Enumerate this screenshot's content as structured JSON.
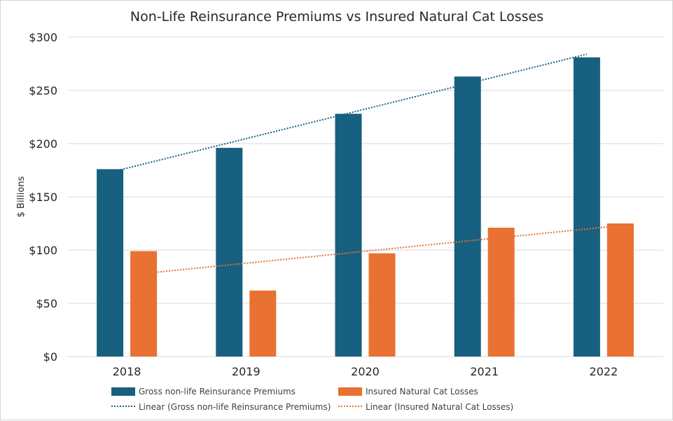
{
  "chart_data": {
    "type": "bar",
    "title": "Non-Life Reinsurance Premiums vs Insured Natural Cat Losses",
    "xlabel": "",
    "ylabel": "$ Billions",
    "ylim": [
      0,
      300
    ],
    "yticks": [
      0,
      50,
      100,
      150,
      200,
      250,
      300
    ],
    "ytick_labels": [
      "$0",
      "$50",
      "$100",
      "$150",
      "$200",
      "$250",
      "$300"
    ],
    "categories": [
      "2018",
      "2019",
      "2020",
      "2021",
      "2022"
    ],
    "series": [
      {
        "name": "Gross non-life Reinsurance Premiums",
        "values": [
          176,
          196,
          228,
          263,
          281
        ],
        "color": "#17607f"
      },
      {
        "name": "Insured Natural Cat Losses",
        "values": [
          99,
          62,
          97,
          121,
          125
        ],
        "color": "#e97132"
      }
    ],
    "trendlines": [
      {
        "name": "Linear (Gross non-life Reinsurance Premiums)",
        "series": "Gross non-life Reinsurance Premiums",
        "start": 173,
        "end": 284,
        "color": "#17607f",
        "style": "dotted"
      },
      {
        "name": "Linear (Insured Natural Cat Losses)",
        "series": "Insured Natural Cat Losses",
        "start": 78,
        "end": 123,
        "color": "#e97132",
        "style": "dotted"
      }
    ],
    "grid": true,
    "legend_position": "bottom"
  }
}
